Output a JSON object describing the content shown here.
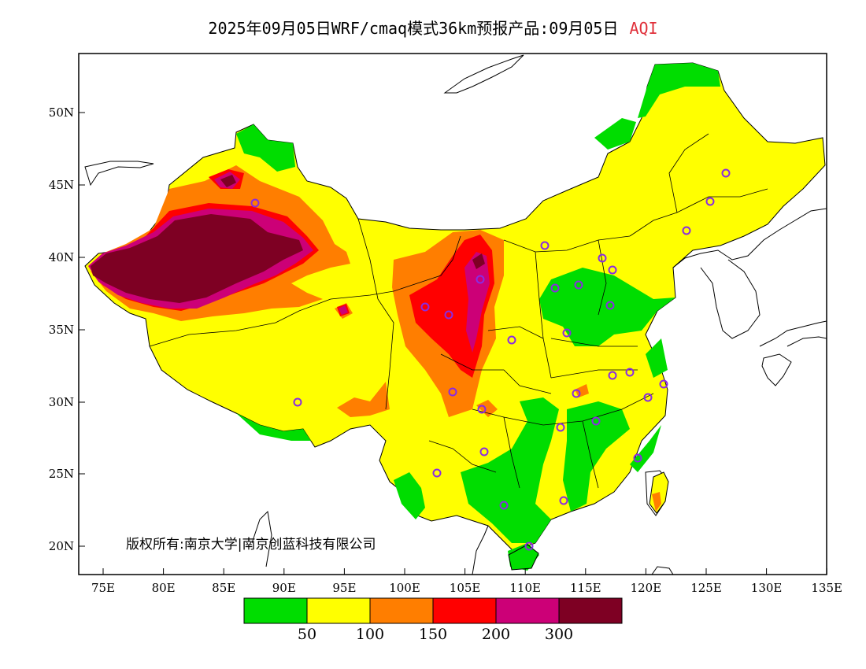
{
  "title": {
    "main": "2025年09月05日WRF/cmaq模式36km预报产品:09月05日",
    "variable": "AQI"
  },
  "axes": {
    "lat_ticks": [
      "20N",
      "25N",
      "30N",
      "35N",
      "40N",
      "45N",
      "50N"
    ],
    "lon_ticks": [
      "75E",
      "80E",
      "85E",
      "90E",
      "95E",
      "100E",
      "105E",
      "110E",
      "115E",
      "120E",
      "125E",
      "130E",
      "135E"
    ]
  },
  "copyright": "版权所有:南京大学|南京创蓝科技有限公司",
  "legend": {
    "colors": [
      "#00dd00",
      "#ffff00",
      "#ff7e00",
      "#ff0000",
      "#cc0077",
      "#7e0023"
    ],
    "labels": [
      "50",
      "100",
      "150",
      "200",
      "300"
    ]
  },
  "colors": {
    "good": "#00dd00",
    "moderate": "#ffff00",
    "usg": "#ff7e00",
    "unhealthy": "#ff0000",
    "very_unhealthy": "#cc0077",
    "hazardous": "#7e0023",
    "station_marker": "#8a2be2"
  }
}
